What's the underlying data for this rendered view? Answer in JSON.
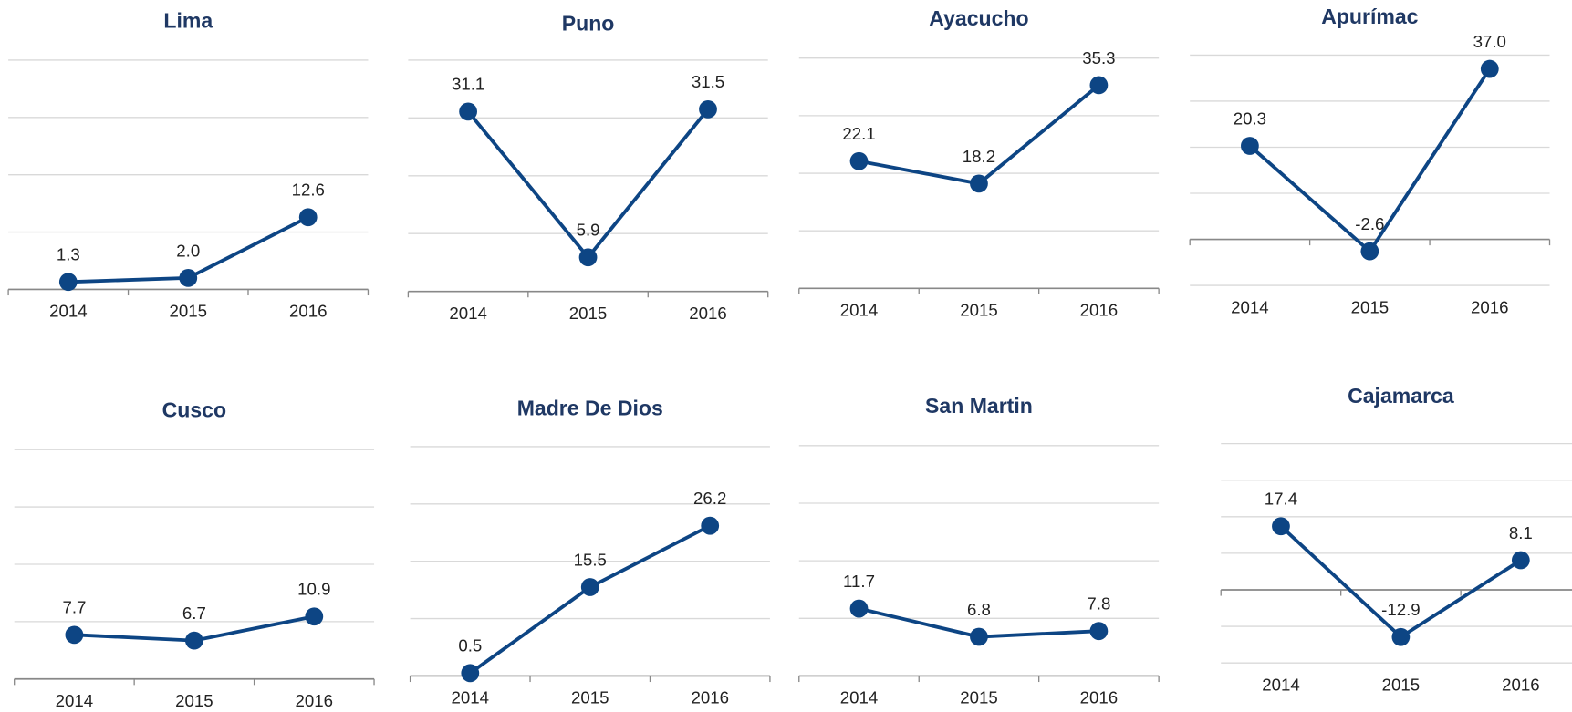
{
  "chart_data": [
    {
      "type": "line",
      "title": "Lima",
      "categories": [
        "2014",
        "2015",
        "2016"
      ],
      "values": [
        1.3,
        2.0,
        12.6
      ],
      "value_labels": [
        "1.3",
        "2.0",
        "12.6"
      ],
      "color": "#0d4584",
      "ylim": [
        0,
        40
      ],
      "yticks": [
        0,
        10,
        20,
        30,
        40
      ],
      "grid": true
    },
    {
      "type": "line",
      "title": "Puno",
      "categories": [
        "2014",
        "2015",
        "2016"
      ],
      "values": [
        31.1,
        5.9,
        31.5
      ],
      "value_labels": [
        "31.1",
        "5.9",
        "31.5"
      ],
      "color": "#0d4584",
      "ylim": [
        0,
        40
      ],
      "yticks": [
        0,
        10,
        20,
        30,
        40
      ],
      "grid": true
    },
    {
      "type": "line",
      "title": "Ayacucho",
      "categories": [
        "2014",
        "2015",
        "2016"
      ],
      "values": [
        22.1,
        18.2,
        35.3
      ],
      "value_labels": [
        "22.1",
        "18.2",
        "35.3"
      ],
      "color": "#0d4584",
      "ylim": [
        0,
        40
      ],
      "yticks": [
        0,
        10,
        20,
        30,
        40
      ],
      "grid": true
    },
    {
      "type": "line",
      "title": "Apurímac",
      "categories": [
        "2014",
        "2015",
        "2016"
      ],
      "values": [
        20.3,
        -2.6,
        37.0
      ],
      "value_labels": [
        "20.3",
        "-2.6",
        "37.0"
      ],
      "color": "#0d4584",
      "ylim": [
        -10,
        40
      ],
      "yticks": [
        -10,
        0,
        10,
        20,
        30,
        40
      ],
      "grid": true
    },
    {
      "type": "line",
      "title": "Cusco",
      "categories": [
        "2014",
        "2015",
        "2016"
      ],
      "values": [
        7.7,
        6.7,
        10.9
      ],
      "value_labels": [
        "7.7",
        "6.7",
        "10.9"
      ],
      "color": "#0d4584",
      "ylim": [
        0,
        40
      ],
      "yticks": [
        0,
        10,
        20,
        30,
        40
      ],
      "grid": true
    },
    {
      "type": "line",
      "title": "Madre De Dios",
      "categories": [
        "2014",
        "2015",
        "2016"
      ],
      "values": [
        0.5,
        15.5,
        26.2
      ],
      "value_labels": [
        "0.5",
        "15.5",
        "26.2"
      ],
      "color": "#0d4584",
      "ylim": [
        0,
        40
      ],
      "yticks": [
        0,
        10,
        20,
        30,
        40
      ],
      "grid": true
    },
    {
      "type": "line",
      "title": "San Martin",
      "categories": [
        "2014",
        "2015",
        "2016"
      ],
      "values": [
        11.7,
        6.8,
        7.8
      ],
      "value_labels": [
        "11.7",
        "6.8",
        "7.8"
      ],
      "color": "#0d4584",
      "ylim": [
        0,
        40
      ],
      "yticks": [
        0,
        10,
        20,
        30,
        40
      ],
      "grid": true
    },
    {
      "type": "line",
      "title": "Cajamarca",
      "categories": [
        "2014",
        "2015",
        "2016"
      ],
      "values": [
        17.4,
        -12.9,
        8.1
      ],
      "value_labels": [
        "17.4",
        "-12.9",
        "8.1"
      ],
      "color": "#0d4584",
      "ylim": [
        -20,
        40
      ],
      "yticks": [
        -20,
        -10,
        0,
        10,
        20,
        30,
        40
      ],
      "grid": true
    }
  ]
}
